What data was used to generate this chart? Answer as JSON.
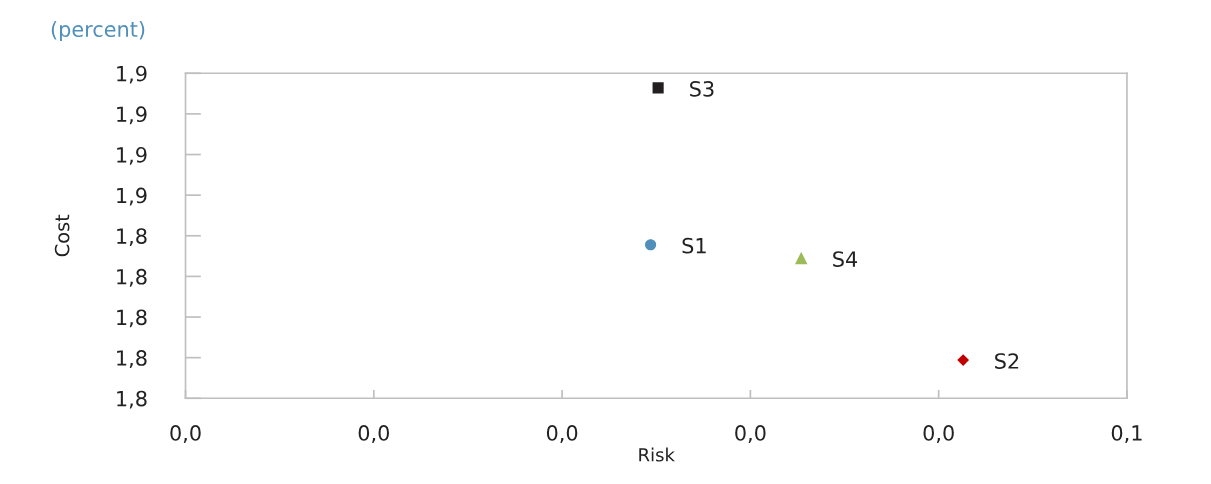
{
  "chart_data": {
    "type": "scatter",
    "subtitle": "(percent)",
    "xlabel": "Risk",
    "ylabel": "Cost",
    "xlim": [
      0,
      0.05
    ],
    "xticks": [
      {
        "value": 0,
        "label": "0,0"
      },
      {
        "value": 0.01,
        "label": "0,0"
      },
      {
        "value": 0.02,
        "label": "0,0"
      },
      {
        "value": 0.03,
        "label": "0,0"
      },
      {
        "value": 0.04,
        "label": "0,0"
      },
      {
        "value": 0.05,
        "label": "0,1"
      }
    ],
    "ylim": [
      1.8,
      1.88
    ],
    "yticks": [
      {
        "value": 1.8,
        "label": "1,8"
      },
      {
        "value": 1.81,
        "label": "1,8"
      },
      {
        "value": 1.82,
        "label": "1,8"
      },
      {
        "value": 1.83,
        "label": "1,8"
      },
      {
        "value": 1.84,
        "label": "1,8"
      },
      {
        "value": 1.85,
        "label": "1,9"
      },
      {
        "value": 1.86,
        "label": "1,9"
      },
      {
        "value": 1.87,
        "label": "1,9"
      },
      {
        "value": 1.88,
        "label": "1,9"
      }
    ],
    "series": [
      {
        "name": "S1",
        "color": "#4f8fba",
        "marker": "circle",
        "x": [
          0.0247
        ],
        "values": [
          1.8378
        ]
      },
      {
        "name": "S2",
        "color": "#c00000",
        "marker": "diamond",
        "x": [
          0.0413
        ],
        "values": [
          1.8094
        ]
      },
      {
        "name": "S3",
        "color": "#231f20",
        "marker": "square",
        "x": [
          0.0251
        ],
        "values": [
          1.8764
        ]
      },
      {
        "name": "S4",
        "color": "#9bbb59",
        "marker": "triangle",
        "x": [
          0.0327
        ],
        "values": [
          1.8345
        ]
      }
    ]
  }
}
